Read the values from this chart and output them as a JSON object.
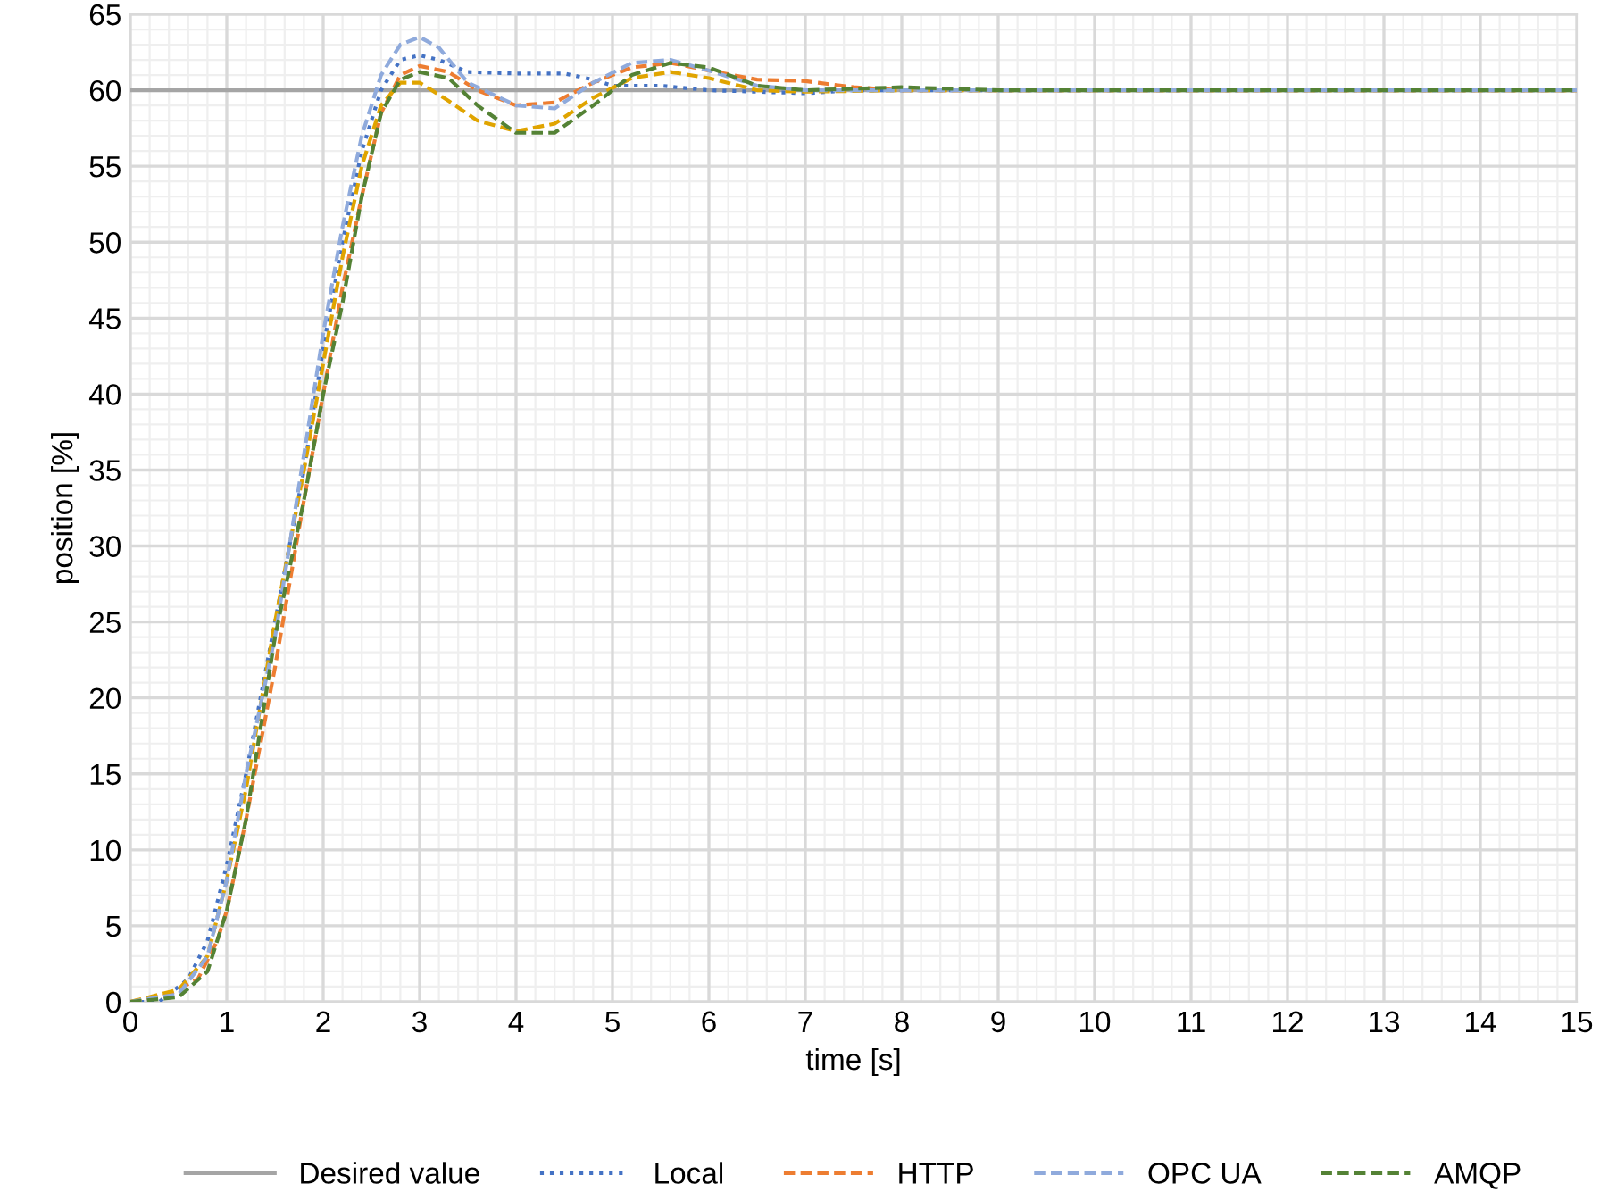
{
  "chart_data": {
    "type": "line",
    "xlabel": "time [s]",
    "ylabel": "position [%]",
    "xlim": [
      0,
      15
    ],
    "ylim": [
      0,
      65
    ],
    "xticks": [
      0,
      1,
      2,
      3,
      4,
      5,
      6,
      7,
      8,
      9,
      10,
      11,
      12,
      13,
      14,
      15
    ],
    "yticks": [
      0,
      5,
      10,
      15,
      20,
      25,
      30,
      35,
      40,
      45,
      50,
      55,
      60,
      65
    ],
    "grid": true,
    "legend": "bottom",
    "marker": "none",
    "series": [
      {
        "name": "Desired value",
        "color": "#a5a5a5",
        "line_style": "solid",
        "x": [
          0,
          15
        ],
        "values": [
          60,
          60
        ]
      },
      {
        "name": "Local",
        "color": "#4472c4",
        "line_style": "dotted",
        "x": [
          0,
          0.3,
          0.6,
          0.8,
          1,
          1.2,
          1.5,
          1.8,
          2,
          2.2,
          2.4,
          2.6,
          2.8,
          3,
          3.2,
          3.5,
          4,
          4.5,
          4.8,
          5,
          5.5,
          6,
          6.5,
          7,
          7.5,
          8,
          15
        ],
        "values": [
          0,
          0,
          1.5,
          4,
          9,
          15,
          25,
          35,
          43,
          50,
          56,
          60,
          62,
          62.3,
          62,
          61.2,
          61.1,
          61.1,
          60.7,
          60.3,
          60.3,
          60,
          59.9,
          59.8,
          60,
          60,
          60
        ]
      },
      {
        "name": "HTTP",
        "color": "#ed7d31",
        "line_style": "dashed",
        "x": [
          0,
          0.4,
          0.7,
          0.9,
          1,
          1.2,
          1.5,
          1.8,
          2,
          2.2,
          2.4,
          2.6,
          2.8,
          3,
          3.3,
          3.6,
          4,
          4.4,
          4.8,
          5.2,
          5.6,
          6,
          6.5,
          7,
          7.5,
          8,
          15
        ],
        "values": [
          0,
          0.5,
          1.5,
          4,
          6,
          12,
          22,
          33,
          40,
          47,
          53,
          58.5,
          61,
          61.6,
          61.2,
          60,
          59,
          59.2,
          60.5,
          61.5,
          61.8,
          61.3,
          60.7,
          60.6,
          60.2,
          60,
          60
        ]
      },
      {
        "color": "#e0a400",
        "line_style": "dashed",
        "x": [
          0,
          0.5,
          0.8,
          1,
          1.2,
          1.5,
          1.8,
          2,
          2.2,
          2.4,
          2.6,
          2.8,
          3,
          3.3,
          3.6,
          4,
          4.4,
          4.8,
          5.2,
          5.6,
          6,
          6.5,
          7,
          8,
          15
        ],
        "values": [
          0,
          0.8,
          3,
          8,
          14,
          25,
          35,
          42,
          49,
          55,
          59,
          60.5,
          60.5,
          59.3,
          58,
          57.3,
          57.8,
          59.5,
          60.8,
          61.2,
          60.8,
          60,
          59.9,
          60,
          60
        ]
      },
      {
        "name": "OPC UA",
        "color": "#8faadc",
        "line_style": "dashed",
        "x": [
          0,
          0.5,
          0.8,
          1,
          1.2,
          1.5,
          1.8,
          2,
          2.2,
          2.4,
          2.6,
          2.8,
          3,
          3.2,
          3.5,
          4,
          4.4,
          4.8,
          5.2,
          5.6,
          6,
          6.5,
          7,
          8,
          15
        ],
        "values": [
          0,
          0.5,
          3,
          8,
          15,
          24,
          36,
          44,
          51,
          57,
          61,
          63,
          63.5,
          62.8,
          60.5,
          59,
          58.8,
          60.5,
          61.8,
          62,
          61.3,
          60.3,
          60,
          60,
          60
        ]
      },
      {
        "name": "AMQP",
        "color": "#548235",
        "line_style": "dashed",
        "x": [
          0,
          0.5,
          0.8,
          1,
          1.2,
          1.5,
          1.8,
          2,
          2.2,
          2.4,
          2.6,
          2.8,
          3,
          3.3,
          3.6,
          4,
          4.4,
          4.8,
          5.2,
          5.6,
          6,
          6.5,
          7,
          7.5,
          8,
          9,
          15
        ],
        "values": [
          0,
          0.3,
          2,
          6,
          12,
          24,
          33,
          40,
          46,
          53,
          58.5,
          60.7,
          61.2,
          60.8,
          59,
          57.2,
          57.2,
          59,
          61,
          61.8,
          61.5,
          60.3,
          60,
          60.1,
          60.2,
          60,
          60
        ]
      }
    ]
  }
}
